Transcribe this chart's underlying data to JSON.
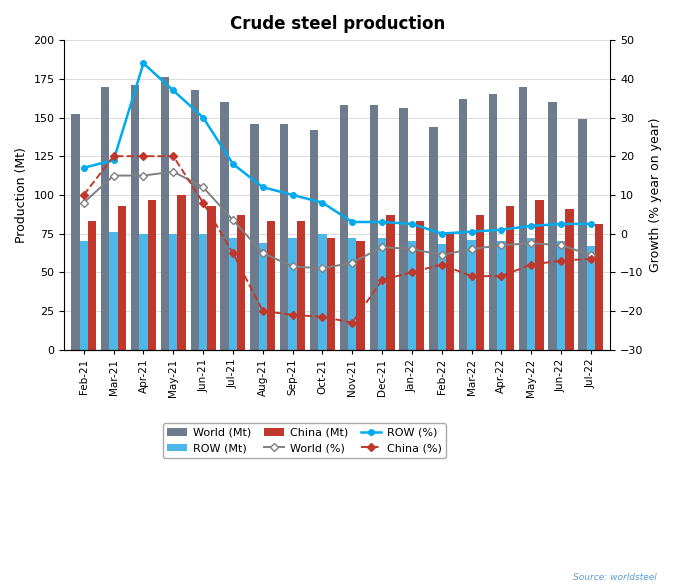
{
  "title": "Crude steel production",
  "ylabel_left": "Production (Mt)",
  "ylabel_right": "Growth (% year on year)",
  "categories": [
    "Feb-21",
    "Mar-21",
    "Apr-21",
    "May-21",
    "Jun-21",
    "Jul-21",
    "Aug-21",
    "Sep-21",
    "Oct-21",
    "Nov-21",
    "Dec-21",
    "Jan-22",
    "Feb-22",
    "Mar-22",
    "Apr-22",
    "May-22",
    "Jun-22",
    "Jul-22"
  ],
  "world_mt": [
    152,
    170,
    171,
    176,
    168,
    160,
    146,
    146,
    142,
    158,
    158,
    156,
    144,
    162,
    165,
    170,
    160,
    149
  ],
  "row_mt": [
    70,
    76,
    75,
    75,
    75,
    72,
    69,
    72,
    75,
    72,
    72,
    70,
    68,
    71,
    70,
    72,
    70,
    67
  ],
  "china_mt": [
    83,
    93,
    97,
    100,
    93,
    87,
    83,
    83,
    72,
    70,
    87,
    83,
    75,
    87,
    93,
    97,
    91,
    81
  ],
  "world_pct": [
    8.0,
    15.0,
    15.0,
    16.0,
    12.0,
    3.5,
    -5.0,
    -8.5,
    -9.0,
    -7.5,
    -3.5,
    -4.0,
    -5.5,
    -4.0,
    -3.0,
    -2.5,
    -3.0,
    -5.5
  ],
  "row_pct": [
    17.0,
    19.0,
    44.0,
    37.0,
    30.0,
    18.0,
    12.0,
    10.0,
    8.0,
    3.0,
    3.0,
    2.5,
    0.0,
    0.5,
    1.0,
    2.0,
    2.5,
    2.5
  ],
  "china_pct": [
    10.0,
    20.0,
    20.0,
    20.0,
    8.0,
    -5.0,
    -20.0,
    -21.0,
    -21.5,
    -23.0,
    -12.0,
    -10.0,
    -8.0,
    -11.0,
    -11.0,
    -8.0,
    -7.0,
    -6.5
  ],
  "world_color": "#6d7b8d",
  "row_color": "#4db8e8",
  "china_color": "#c0382b",
  "world_line_color": "#808080",
  "row_line_color": "#00aaee",
  "china_line_color": "#c0382b",
  "ylim_left": [
    0,
    200
  ],
  "ylim_right": [
    -30,
    50
  ],
  "yticks_left": [
    0,
    25,
    50,
    75,
    100,
    125,
    150,
    175,
    200
  ],
  "yticks_right": [
    -30,
    -20,
    -10,
    0,
    10,
    20,
    30,
    40,
    50
  ],
  "source_text": "Source: worldsteel"
}
